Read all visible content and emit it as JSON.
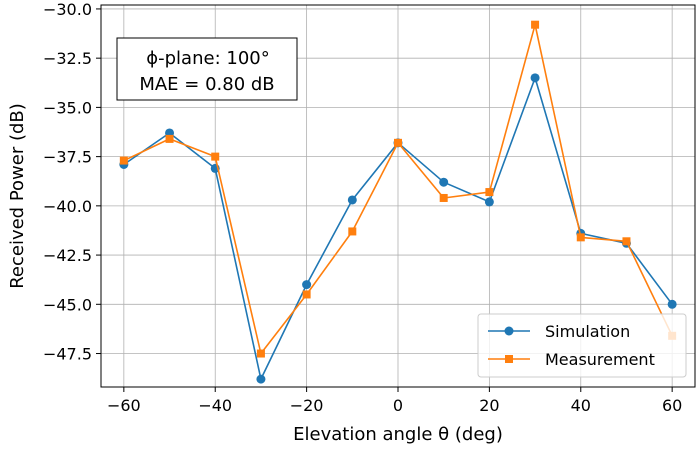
{
  "chart_data": {
    "type": "line",
    "title": "",
    "xlabel": "Elevation angle θ (deg)",
    "ylabel": "Received Power (dB)",
    "xlim": [
      -65,
      65
    ],
    "ylim": [
      -49.2,
      -29.8
    ],
    "xticks": [
      -60,
      -40,
      -20,
      0,
      20,
      40,
      60
    ],
    "yticks": [
      -30.0,
      -32.5,
      -35.0,
      -37.5,
      -40.0,
      -42.5,
      -45.0,
      -47.5
    ],
    "xtick_labels": [
      "−60",
      "−40",
      "−20",
      "0",
      "20",
      "40",
      "60"
    ],
    "ytick_labels": [
      "−30.0",
      "−32.5",
      "−35.0",
      "−37.5",
      "−40.0",
      "−42.5",
      "−45.0",
      "−47.5"
    ],
    "grid": true,
    "x": [
      -60,
      -50,
      -40,
      -30,
      -20,
      -10,
      0,
      10,
      20,
      30,
      40,
      50,
      60
    ],
    "series": [
      {
        "name": "Simulation",
        "color": "#1f77b4",
        "marker": "circle",
        "values": [
          -37.9,
          -36.3,
          -38.1,
          -48.8,
          -44.0,
          -39.7,
          -36.8,
          -38.8,
          -39.8,
          -33.5,
          -41.4,
          -41.9,
          -45.0
        ]
      },
      {
        "name": "Measurement",
        "color": "#ff7f0e",
        "marker": "square",
        "values": [
          -37.7,
          -36.6,
          -37.5,
          -47.5,
          -44.5,
          -41.3,
          -36.8,
          -39.6,
          -39.3,
          -30.8,
          -41.6,
          -41.8,
          -46.6
        ]
      }
    ],
    "legend": {
      "position": "bottom-right",
      "entries": [
        "Simulation",
        "Measurement"
      ]
    },
    "annotation": {
      "line1": "ϕ-plane: 100°",
      "line2": "MAE = 0.80 dB",
      "position": "top-left"
    }
  }
}
